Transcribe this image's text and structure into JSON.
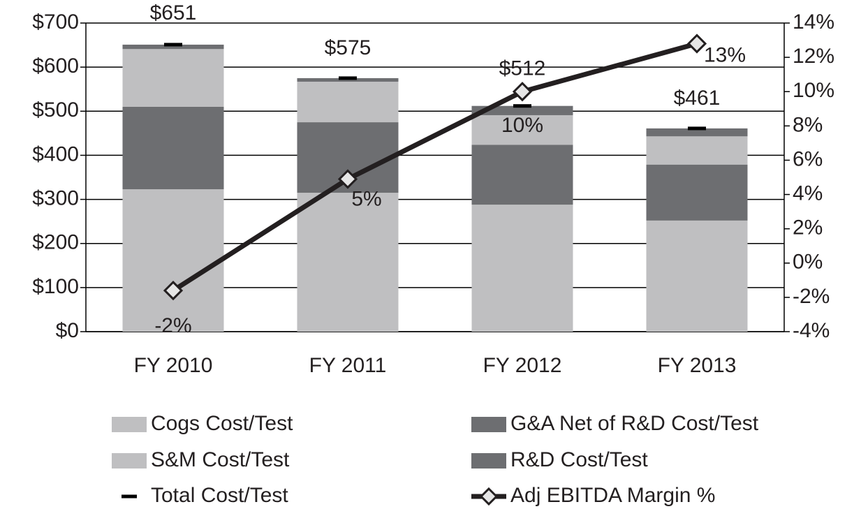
{
  "chart_data": {
    "type": "bar",
    "stacked": true,
    "categories": [
      "FY 2010",
      "FY 2011",
      "FY 2012",
      "FY 2013"
    ],
    "series": [
      {
        "name": "Cogs Cost/Test",
        "color": "#bfbfc1",
        "values": [
          323,
          315,
          288,
          252
        ]
      },
      {
        "name": "G&A Net of R&D Cost/Test",
        "color": "#6d6e71",
        "values": [
          187,
          160,
          136,
          127
        ]
      },
      {
        "name": "S&M Cost/Test",
        "color": "#bfbfc1",
        "values": [
          131,
          92,
          67,
          64
        ]
      },
      {
        "name": "R&D Cost/Test",
        "color": "#6d6e71",
        "values": [
          10,
          8,
          21,
          18
        ]
      },
      {
        "name": "Total Cost/Test",
        "type": "marker",
        "color": "#000000",
        "values": [
          651,
          575,
          512,
          461
        ],
        "value_labels": [
          "$651",
          "$575",
          "$512",
          "$461"
        ]
      },
      {
        "name": "Adj EBITDA Margin %",
        "type": "line",
        "axis": "y2",
        "color": "#231f20",
        "values": [
          -1.6,
          4.9,
          10.0,
          12.8
        ],
        "value_labels": [
          "-2%",
          "5%",
          "10%",
          "13%"
        ]
      }
    ],
    "ylim": [
      0,
      700
    ],
    "yticks": [
      {
        "value": 0,
        "label": "$0"
      },
      {
        "value": 100,
        "label": "$100"
      },
      {
        "value": 200,
        "label": "$200"
      },
      {
        "value": 300,
        "label": "$300"
      },
      {
        "value": 400,
        "label": "$400"
      },
      {
        "value": 500,
        "label": "$500"
      },
      {
        "value": 600,
        "label": "$600"
      },
      {
        "value": 700,
        "label": "$700"
      }
    ],
    "y2lim": [
      -4,
      14
    ],
    "y2ticks": [
      {
        "value": -4,
        "label": "-4%"
      },
      {
        "value": -2,
        "label": "-2%"
      },
      {
        "value": 0,
        "label": "0%"
      },
      {
        "value": 2,
        "label": "2%"
      },
      {
        "value": 4,
        "label": "4%"
      },
      {
        "value": 6,
        "label": "6%"
      },
      {
        "value": 8,
        "label": "8%"
      },
      {
        "value": 10,
        "label": "10%"
      },
      {
        "value": 12,
        "label": "12%"
      },
      {
        "value": 14,
        "label": "14%"
      }
    ],
    "grid": true,
    "legend": "bottom"
  }
}
